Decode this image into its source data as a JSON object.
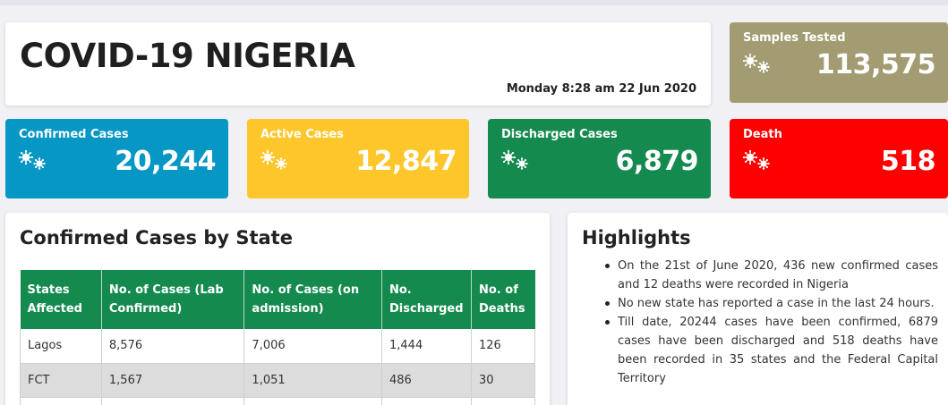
{
  "header": {
    "title": "COVID-19 NIGERIA",
    "datetime": "Monday 8:28 am 22 Jun 2020"
  },
  "stats": {
    "samples_tested": {
      "label": "Samples Tested",
      "value": "113,575",
      "color": "#a39b72"
    },
    "confirmed": {
      "label": "Confirmed Cases",
      "value": "20,244",
      "color": "#0797c4"
    },
    "active": {
      "label": "Active Cases",
      "value": "12,847",
      "color": "#fdc72c"
    },
    "discharged": {
      "label": "Discharged Cases",
      "value": "6,879",
      "color": "#158a4f"
    },
    "death": {
      "label": "Death",
      "value": "518",
      "color": "#ff0000"
    }
  },
  "states_table": {
    "title": "Confirmed Cases by State",
    "columns": [
      "States Affected",
      "No. of Cases (Lab Confirmed)",
      "No. of Cases (on admission)",
      "No. Discharged",
      "No. of Deaths"
    ],
    "rows": [
      [
        "Lagos",
        "8,576",
        "7,006",
        "1,444",
        "126"
      ],
      [
        "FCT",
        "1,567",
        "1,051",
        "486",
        "30"
      ]
    ],
    "header_color": "#158a4f"
  },
  "highlights": {
    "title": "Highlights",
    "items": [
      "On the 21st of June 2020, 436 new confirmed cases and 12 deaths were recorded in Nigeria",
      "No new state has reported a case in the last 24 hours.",
      "Till date, 20244 cases have been confirmed, 6879 cases have been discharged and 518 deaths have been recorded in 35 states and the Federal Capital Territory"
    ]
  },
  "icons": {
    "stat_icon": "virus-icon"
  }
}
